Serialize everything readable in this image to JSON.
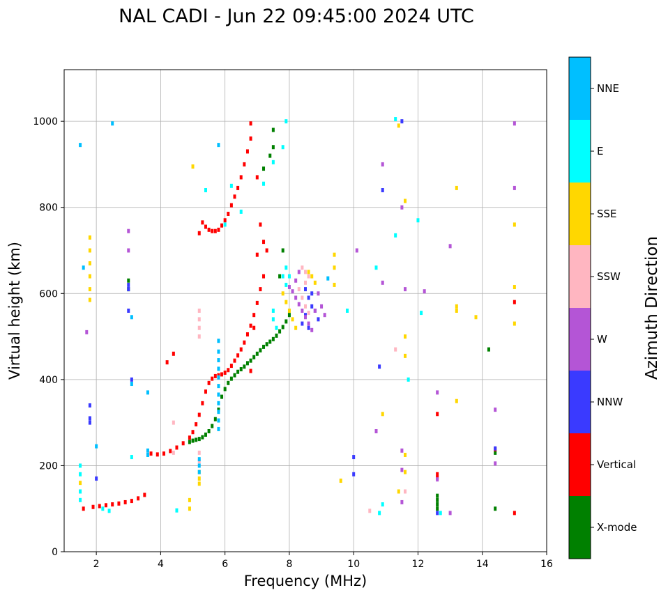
{
  "chart_data": {
    "type": "scatter",
    "title": "NAL CADI - Jun 22 09:45:00 2024 UTC",
    "xlabel": "Frequency (MHz)",
    "ylabel": "Virtual height (km)",
    "xlim": [
      1,
      16
    ],
    "ylim": [
      0,
      1120
    ],
    "xticks": [
      2,
      4,
      6,
      8,
      10,
      12,
      14,
      16
    ],
    "yticks": [
      0,
      200,
      400,
      600,
      800,
      1000
    ],
    "grid": true,
    "colorbar": {
      "label": "Azimuth Direction",
      "categories": [
        {
          "name": "X-mode",
          "color": "#008000"
        },
        {
          "name": "Vertical",
          "color": "#ff0000"
        },
        {
          "name": "NNW",
          "color": "#3a3aff"
        },
        {
          "name": "W",
          "color": "#b455d6"
        },
        {
          "name": "SSW",
          "color": "#ffb6c1"
        },
        {
          "name": "SSE",
          "color": "#ffd700"
        },
        {
          "name": "E",
          "color": "#00ffff"
        },
        {
          "name": "NNE",
          "color": "#00bfff"
        }
      ]
    },
    "series": [
      {
        "name": "X-mode",
        "points": [
          [
            4.9,
            255
          ],
          [
            5.0,
            258
          ],
          [
            5.1,
            260
          ],
          [
            5.2,
            262
          ],
          [
            5.3,
            266
          ],
          [
            5.4,
            272
          ],
          [
            5.5,
            280
          ],
          [
            5.6,
            292
          ],
          [
            5.7,
            308
          ],
          [
            5.8,
            330
          ],
          [
            5.9,
            360
          ],
          [
            6.0,
            378
          ],
          [
            6.1,
            392
          ],
          [
            6.2,
            402
          ],
          [
            6.3,
            410
          ],
          [
            6.4,
            418
          ],
          [
            6.5,
            424
          ],
          [
            6.6,
            430
          ],
          [
            6.7,
            438
          ],
          [
            6.8,
            444
          ],
          [
            6.9,
            452
          ],
          [
            7.0,
            460
          ],
          [
            7.1,
            468
          ],
          [
            7.2,
            476
          ],
          [
            7.3,
            482
          ],
          [
            7.4,
            488
          ],
          [
            7.5,
            494
          ],
          [
            7.6,
            502
          ],
          [
            7.7,
            512
          ],
          [
            7.8,
            522
          ],
          [
            7.9,
            535
          ],
          [
            8.0,
            550
          ],
          [
            7.2,
            890
          ],
          [
            7.4,
            920
          ],
          [
            7.5,
            940
          ],
          [
            7.5,
            980
          ],
          [
            7.8,
            700
          ],
          [
            7.7,
            640
          ],
          [
            12.6,
            130
          ],
          [
            12.6,
            120
          ],
          [
            12.6,
            110
          ],
          [
            12.6,
            100
          ],
          [
            14.2,
            470
          ],
          [
            14.4,
            100
          ],
          [
            3.0,
            630
          ],
          [
            3.0,
            610
          ],
          [
            14.4,
            230
          ]
        ]
      },
      {
        "name": "Vertical",
        "points": [
          [
            1.6,
            100
          ],
          [
            1.9,
            104
          ],
          [
            2.1,
            106
          ],
          [
            2.3,
            108
          ],
          [
            2.5,
            110
          ],
          [
            2.7,
            112
          ],
          [
            2.9,
            115
          ],
          [
            3.1,
            118
          ],
          [
            3.3,
            124
          ],
          [
            3.5,
            132
          ],
          [
            3.7,
            228
          ],
          [
            3.9,
            226
          ],
          [
            4.1,
            228
          ],
          [
            4.3,
            234
          ],
          [
            4.5,
            242
          ],
          [
            4.7,
            252
          ],
          [
            4.9,
            265
          ],
          [
            5.0,
            278
          ],
          [
            5.1,
            296
          ],
          [
            5.2,
            318
          ],
          [
            5.3,
            345
          ],
          [
            5.4,
            372
          ],
          [
            5.5,
            392
          ],
          [
            5.6,
            402
          ],
          [
            5.7,
            408
          ],
          [
            5.8,
            410
          ],
          [
            5.9,
            412
          ],
          [
            6.0,
            416
          ],
          [
            6.1,
            422
          ],
          [
            6.2,
            432
          ],
          [
            6.3,
            444
          ],
          [
            6.4,
            456
          ],
          [
            6.5,
            470
          ],
          [
            6.6,
            486
          ],
          [
            6.7,
            505
          ],
          [
            6.8,
            525
          ],
          [
            6.9,
            550
          ],
          [
            7.0,
            578
          ],
          [
            7.1,
            610
          ],
          [
            7.2,
            640
          ],
          [
            5.2,
            740
          ],
          [
            5.3,
            765
          ],
          [
            5.4,
            755
          ],
          [
            5.5,
            748
          ],
          [
            5.6,
            745
          ],
          [
            5.7,
            745
          ],
          [
            5.8,
            748
          ],
          [
            5.9,
            758
          ],
          [
            6.0,
            770
          ],
          [
            6.1,
            785
          ],
          [
            6.2,
            805
          ],
          [
            6.3,
            825
          ],
          [
            6.4,
            845
          ],
          [
            6.5,
            870
          ],
          [
            6.6,
            900
          ],
          [
            6.7,
            930
          ],
          [
            6.8,
            960
          ],
          [
            6.8,
            995
          ],
          [
            7.0,
            870
          ],
          [
            7.1,
            760
          ],
          [
            7.2,
            720
          ],
          [
            7.0,
            690
          ],
          [
            12.6,
            320
          ],
          [
            12.6,
            180
          ],
          [
            12.6,
            172
          ],
          [
            15.0,
            580
          ],
          [
            15.0,
            90
          ],
          [
            14.4,
            238
          ],
          [
            4.2,
            440
          ],
          [
            4.4,
            460
          ],
          [
            6.8,
            420
          ],
          [
            6.9,
            520
          ],
          [
            7.3,
            700
          ]
        ]
      },
      {
        "name": "NNW",
        "points": [
          [
            1.8,
            340
          ],
          [
            1.8,
            310
          ],
          [
            1.8,
            300
          ],
          [
            2.0,
            170
          ],
          [
            3.1,
            400
          ],
          [
            3.0,
            560
          ],
          [
            3.0,
            620
          ],
          [
            3.0,
            610
          ],
          [
            8.5,
            610
          ],
          [
            8.6,
            590
          ],
          [
            8.7,
            570
          ],
          [
            8.8,
            560
          ],
          [
            8.9,
            540
          ],
          [
            8.7,
            600
          ],
          [
            8.6,
            520
          ],
          [
            10.8,
            430
          ],
          [
            10.9,
            840
          ],
          [
            11.5,
            1000
          ],
          [
            10.0,
            220
          ],
          [
            10.0,
            180
          ],
          [
            12.6,
            90
          ],
          [
            14.4,
            240
          ],
          [
            8.4,
            530
          ],
          [
            8.5,
            550
          ]
        ]
      },
      {
        "name": "W",
        "points": [
          [
            1.7,
            510
          ],
          [
            8.0,
            615
          ],
          [
            8.1,
            605
          ],
          [
            8.2,
            590
          ],
          [
            8.3,
            575
          ],
          [
            8.4,
            560
          ],
          [
            8.5,
            545
          ],
          [
            8.6,
            530
          ],
          [
            8.7,
            515
          ],
          [
            8.8,
            560
          ],
          [
            8.9,
            600
          ],
          [
            9.0,
            570
          ],
          [
            9.1,
            550
          ],
          [
            8.2,
            630
          ],
          [
            8.3,
            650
          ],
          [
            10.9,
            625
          ],
          [
            10.9,
            900
          ],
          [
            11.5,
            800
          ],
          [
            11.6,
            610
          ],
          [
            12.2,
            605
          ],
          [
            13.0,
            710
          ],
          [
            15.0,
            995
          ],
          [
            15.0,
            845
          ],
          [
            14.4,
            330
          ],
          [
            14.4,
            205
          ],
          [
            11.5,
            235
          ],
          [
            11.5,
            190
          ],
          [
            11.5,
            115
          ],
          [
            10.1,
            700
          ],
          [
            10.7,
            280
          ],
          [
            3.0,
            700
          ],
          [
            3.0,
            745
          ],
          [
            12.6,
            370
          ],
          [
            12.6,
            168
          ],
          [
            13.0,
            90
          ]
        ]
      },
      {
        "name": "SSW",
        "points": [
          [
            5.2,
            560
          ],
          [
            5.2,
            540
          ],
          [
            5.2,
            520
          ],
          [
            5.2,
            500
          ],
          [
            5.2,
            230
          ],
          [
            5.2,
            210
          ],
          [
            8.4,
            660
          ],
          [
            8.5,
            650
          ],
          [
            8.6,
            640
          ],
          [
            8.5,
            625
          ],
          [
            8.3,
            610
          ],
          [
            8.4,
            590
          ],
          [
            8.5,
            570
          ],
          [
            8.6,
            555
          ],
          [
            11.6,
            140
          ],
          [
            10.5,
            95
          ],
          [
            11.3,
            470
          ],
          [
            4.4,
            300
          ],
          [
            4.4,
            230
          ]
        ]
      },
      {
        "name": "SSE",
        "points": [
          [
            1.8,
            730
          ],
          [
            1.8,
            700
          ],
          [
            1.8,
            670
          ],
          [
            1.8,
            640
          ],
          [
            1.8,
            610
          ],
          [
            1.8,
            585
          ],
          [
            5.2,
            185
          ],
          [
            5.2,
            170
          ],
          [
            5.2,
            158
          ],
          [
            7.8,
            600
          ],
          [
            7.9,
            580
          ],
          [
            8.0,
            560
          ],
          [
            8.1,
            540
          ],
          [
            8.2,
            520
          ],
          [
            8.6,
            650
          ],
          [
            8.7,
            640
          ],
          [
            8.8,
            625
          ],
          [
            9.4,
            690
          ],
          [
            9.4,
            660
          ],
          [
            9.4,
            620
          ],
          [
            11.6,
            815
          ],
          [
            11.6,
            500
          ],
          [
            11.6,
            455
          ],
          [
            11.4,
            990
          ],
          [
            13.2,
            845
          ],
          [
            13.2,
            570
          ],
          [
            13.2,
            560
          ],
          [
            13.8,
            545
          ],
          [
            15.0,
            760
          ],
          [
            15.0,
            615
          ],
          [
            15.0,
            530
          ],
          [
            13.2,
            350
          ],
          [
            11.6,
            225
          ],
          [
            11.6,
            185
          ],
          [
            11.4,
            140
          ],
          [
            10.9,
            320
          ],
          [
            9.6,
            165
          ],
          [
            4.9,
            100
          ],
          [
            4.9,
            120
          ],
          [
            5.0,
            895
          ],
          [
            1.5,
            160
          ]
        ]
      },
      {
        "name": "E",
        "points": [
          [
            1.5,
            200
          ],
          [
            1.5,
            180
          ],
          [
            1.5,
            140
          ],
          [
            1.5,
            120
          ],
          [
            2.2,
            100
          ],
          [
            2.4,
            95
          ],
          [
            7.9,
            1000
          ],
          [
            7.8,
            940
          ],
          [
            7.5,
            905
          ],
          [
            7.2,
            855
          ],
          [
            6.2,
            850
          ],
          [
            6.5,
            790
          ],
          [
            6.0,
            760
          ],
          [
            5.4,
            840
          ],
          [
            7.8,
            640
          ],
          [
            7.9,
            660
          ],
          [
            7.9,
            620
          ],
          [
            8.0,
            640
          ],
          [
            7.5,
            560
          ],
          [
            7.5,
            540
          ],
          [
            7.6,
            520
          ],
          [
            9.8,
            560
          ],
          [
            10.7,
            660
          ],
          [
            11.3,
            1005
          ],
          [
            11.3,
            735
          ],
          [
            12.0,
            770
          ],
          [
            12.1,
            555
          ],
          [
            10.8,
            90
          ],
          [
            11.7,
            400
          ],
          [
            10.9,
            110
          ],
          [
            12.7,
            90
          ],
          [
            3.1,
            220
          ],
          [
            4.5,
            96
          ]
        ]
      },
      {
        "name": "NNE",
        "points": [
          [
            5.8,
            465
          ],
          [
            5.8,
            445
          ],
          [
            5.8,
            425
          ],
          [
            5.8,
            405
          ],
          [
            5.8,
            385
          ],
          [
            5.8,
            365
          ],
          [
            5.8,
            345
          ],
          [
            5.8,
            325
          ],
          [
            5.8,
            305
          ],
          [
            5.8,
            285
          ],
          [
            5.8,
            490
          ],
          [
            5.8,
            945
          ],
          [
            5.2,
            215
          ],
          [
            5.2,
            200
          ],
          [
            5.2,
            185
          ],
          [
            3.6,
            370
          ],
          [
            3.6,
            235
          ],
          [
            3.6,
            225
          ],
          [
            3.1,
            545
          ],
          [
            3.1,
            390
          ],
          [
            2.5,
            995
          ],
          [
            1.5,
            945
          ],
          [
            1.6,
            660
          ],
          [
            2.0,
            245
          ],
          [
            9.2,
            635
          ]
        ]
      }
    ]
  }
}
